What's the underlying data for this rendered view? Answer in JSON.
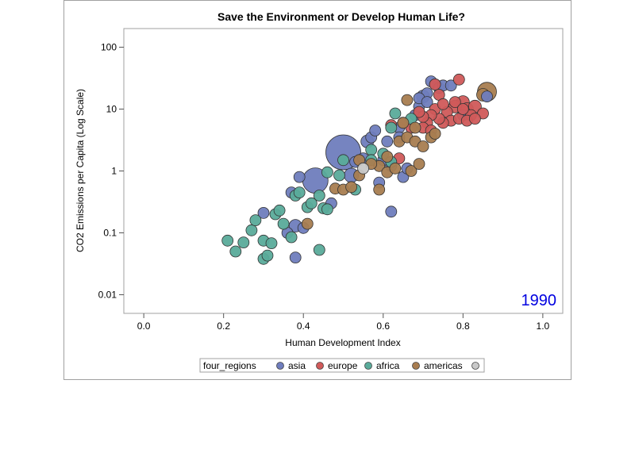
{
  "chart_data": {
    "type": "scatter",
    "title": "Save the Environment or Develop Human Life?",
    "xlabel": "Human Development Index",
    "ylabel": "CO2 Emissions per Capita (Log Scale)",
    "xlim": [
      -0.05,
      1.05
    ],
    "ylim": [
      0.005,
      200
    ],
    "y_scale": "log",
    "x_ticks": [
      "0.0",
      "0.2",
      "0.4",
      "0.6",
      "0.8",
      "1.0"
    ],
    "y_ticks": [
      "0.01",
      "0.1",
      "1",
      "10",
      "100"
    ],
    "annotation": "1990",
    "legend": {
      "title": "four_regions",
      "placement": "bottom",
      "entries": [
        "asia",
        "europe",
        "africa",
        "americas",
        ""
      ]
    },
    "colors": {
      "asia": "#6f7dbd",
      "europe": "#d05a5a",
      "africa": "#5aab9a",
      "americas": "#a87d50",
      "unknown": "#c8c8c8"
    },
    "series": [
      {
        "name": "asia",
        "points": [
          [
            0.5,
            2.0,
            22
          ],
          [
            0.43,
            0.7,
            16
          ],
          [
            0.52,
            0.85,
            9
          ],
          [
            0.3,
            0.21,
            7
          ],
          [
            0.38,
            0.04,
            7
          ],
          [
            0.38,
            0.13,
            8
          ],
          [
            0.4,
            0.12,
            7
          ],
          [
            0.36,
            0.1,
            7
          ],
          [
            0.37,
            0.45,
            7
          ],
          [
            0.39,
            0.8,
            7
          ],
          [
            0.47,
            0.3,
            7
          ],
          [
            0.62,
            0.22,
            7
          ],
          [
            0.56,
            3.0,
            8
          ],
          [
            0.57,
            3.5,
            7
          ],
          [
            0.58,
            4.5,
            7
          ],
          [
            0.6,
            1.5,
            7
          ],
          [
            0.61,
            3.0,
            7
          ],
          [
            0.62,
            1.2,
            7
          ],
          [
            0.64,
            5.0,
            7
          ],
          [
            0.65,
            0.8,
            7
          ],
          [
            0.66,
            1.1,
            7
          ],
          [
            0.68,
            8.0,
            7
          ],
          [
            0.69,
            11.0,
            7
          ],
          [
            0.7,
            16.0,
            8
          ],
          [
            0.71,
            18.0,
            7
          ],
          [
            0.72,
            28.0,
            7
          ],
          [
            0.73,
            25.0,
            7
          ],
          [
            0.74,
            22.0,
            7
          ],
          [
            0.75,
            24.0,
            7
          ],
          [
            0.77,
            24.0,
            7
          ],
          [
            0.69,
            15.0,
            7
          ],
          [
            0.71,
            13.0,
            7
          ],
          [
            0.8,
            8.0,
            7
          ],
          [
            0.86,
            16.0,
            7
          ],
          [
            0.59,
            0.65,
            7
          ],
          [
            0.64,
            3.5,
            7
          ],
          [
            0.53,
            1.4,
            7
          ],
          [
            0.55,
            1.6,
            7
          ]
        ]
      },
      {
        "name": "europe",
        "points": [
          [
            0.79,
            30.0,
            7
          ],
          [
            0.8,
            13.0,
            8
          ],
          [
            0.81,
            10.0,
            8
          ],
          [
            0.82,
            8.0,
            7
          ],
          [
            0.83,
            11.0,
            8
          ],
          [
            0.85,
            8.5,
            7
          ],
          [
            0.78,
            11.0,
            8
          ],
          [
            0.76,
            9.0,
            7
          ],
          [
            0.77,
            6.5,
            7
          ],
          [
            0.79,
            7.0,
            7
          ],
          [
            0.81,
            6.5,
            7
          ],
          [
            0.83,
            7.0,
            7
          ],
          [
            0.75,
            6.0,
            7
          ],
          [
            0.74,
            7.0,
            7
          ],
          [
            0.73,
            10.0,
            7
          ],
          [
            0.72,
            8.0,
            7
          ],
          [
            0.71,
            6.0,
            7
          ],
          [
            0.7,
            5.0,
            7
          ],
          [
            0.72,
            4.5,
            7
          ],
          [
            0.73,
            25.0,
            7
          ],
          [
            0.74,
            17.0,
            7
          ],
          [
            0.75,
            12.0,
            7
          ],
          [
            0.7,
            7.5,
            7
          ],
          [
            0.69,
            9.0,
            7
          ],
          [
            0.67,
            5.0,
            7
          ],
          [
            0.65,
            6.0,
            7
          ],
          [
            0.62,
            5.5,
            7
          ],
          [
            0.64,
            1.6,
            7
          ],
          [
            0.78,
            13.0,
            7
          ],
          [
            0.8,
            10.0,
            7
          ]
        ]
      },
      {
        "name": "africa",
        "points": [
          [
            0.21,
            0.075,
            7
          ],
          [
            0.23,
            0.05,
            7
          ],
          [
            0.25,
            0.07,
            7
          ],
          [
            0.27,
            0.11,
            7
          ],
          [
            0.28,
            0.16,
            7
          ],
          [
            0.3,
            0.038,
            7
          ],
          [
            0.31,
            0.043,
            7
          ],
          [
            0.3,
            0.075,
            7
          ],
          [
            0.32,
            0.068,
            7
          ],
          [
            0.33,
            0.2,
            7
          ],
          [
            0.34,
            0.23,
            7
          ],
          [
            0.35,
            0.14,
            7
          ],
          [
            0.37,
            0.085,
            7
          ],
          [
            0.38,
            0.4,
            7
          ],
          [
            0.39,
            0.45,
            7
          ],
          [
            0.41,
            0.26,
            7
          ],
          [
            0.42,
            0.3,
            7
          ],
          [
            0.44,
            0.4,
            7
          ],
          [
            0.45,
            0.25,
            7
          ],
          [
            0.46,
            0.24,
            7
          ],
          [
            0.46,
            0.95,
            7
          ],
          [
            0.49,
            0.85,
            7
          ],
          [
            0.5,
            1.5,
            7
          ],
          [
            0.53,
            0.5,
            7
          ],
          [
            0.57,
            2.2,
            7
          ],
          [
            0.57,
            1.5,
            7
          ],
          [
            0.6,
            1.9,
            7
          ],
          [
            0.62,
            1.4,
            7
          ],
          [
            0.62,
            5.0,
            7
          ],
          [
            0.63,
            8.5,
            7
          ],
          [
            0.67,
            7.0,
            7
          ],
          [
            0.44,
            0.053,
            7
          ]
        ]
      },
      {
        "name": "americas",
        "points": [
          [
            0.86,
            19.0,
            12
          ],
          [
            0.85,
            17.0,
            8
          ],
          [
            0.41,
            0.14,
            7
          ],
          [
            0.48,
            0.52,
            7
          ],
          [
            0.5,
            0.5,
            7
          ],
          [
            0.52,
            0.55,
            7
          ],
          [
            0.54,
            1.5,
            7
          ],
          [
            0.54,
            0.85,
            7
          ],
          [
            0.59,
            0.5,
            7
          ],
          [
            0.59,
            1.2,
            7
          ],
          [
            0.61,
            1.7,
            7
          ],
          [
            0.61,
            0.95,
            7
          ],
          [
            0.63,
            1.1,
            7
          ],
          [
            0.64,
            3.0,
            7
          ],
          [
            0.65,
            6.0,
            7
          ],
          [
            0.66,
            14.0,
            7
          ],
          [
            0.66,
            3.5,
            7
          ],
          [
            0.67,
            1.0,
            7
          ],
          [
            0.68,
            3.0,
            7
          ],
          [
            0.69,
            1.3,
            7
          ],
          [
            0.7,
            2.5,
            7
          ],
          [
            0.72,
            3.5,
            7
          ],
          [
            0.73,
            4.0,
            7
          ],
          [
            0.68,
            5.0,
            7
          ],
          [
            0.57,
            1.3,
            7
          ]
        ]
      },
      {
        "name": "",
        "points": [
          [
            0.55,
            1.1,
            7
          ]
        ]
      }
    ]
  }
}
